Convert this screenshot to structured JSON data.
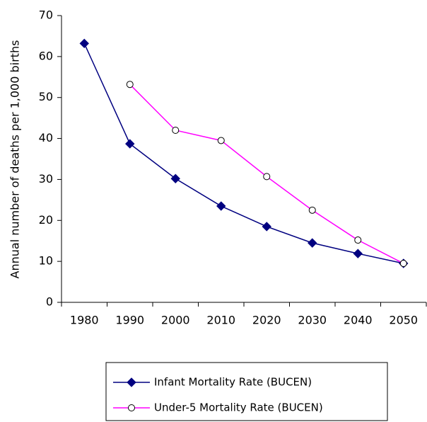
{
  "chart_data": {
    "type": "line",
    "y_label": "Annual number of deaths per 1,000 births",
    "categories": [
      "1980",
      "1990",
      "2000",
      "2010",
      "2020",
      "2030",
      "2040",
      "2050"
    ],
    "series": [
      {
        "name": "Infant Mortality Rate (BUCEN)",
        "color": "#000080",
        "marker": "diamond",
        "values": [
          63.2,
          38.7,
          30.2,
          23.5,
          18.5,
          14.5,
          11.9,
          9.5
        ]
      },
      {
        "name": "Under-5 Mortality Rate (BUCEN)",
        "color": "#ff00ff",
        "marker": "circle",
        "values": [
          null,
          53.2,
          42.0,
          39.5,
          30.7,
          22.5,
          15.2,
          9.5
        ]
      }
    ],
    "ylim": [
      0,
      70
    ],
    "yticks": [
      0,
      10,
      20,
      30,
      40,
      50,
      60,
      70
    ],
    "grid": false
  }
}
